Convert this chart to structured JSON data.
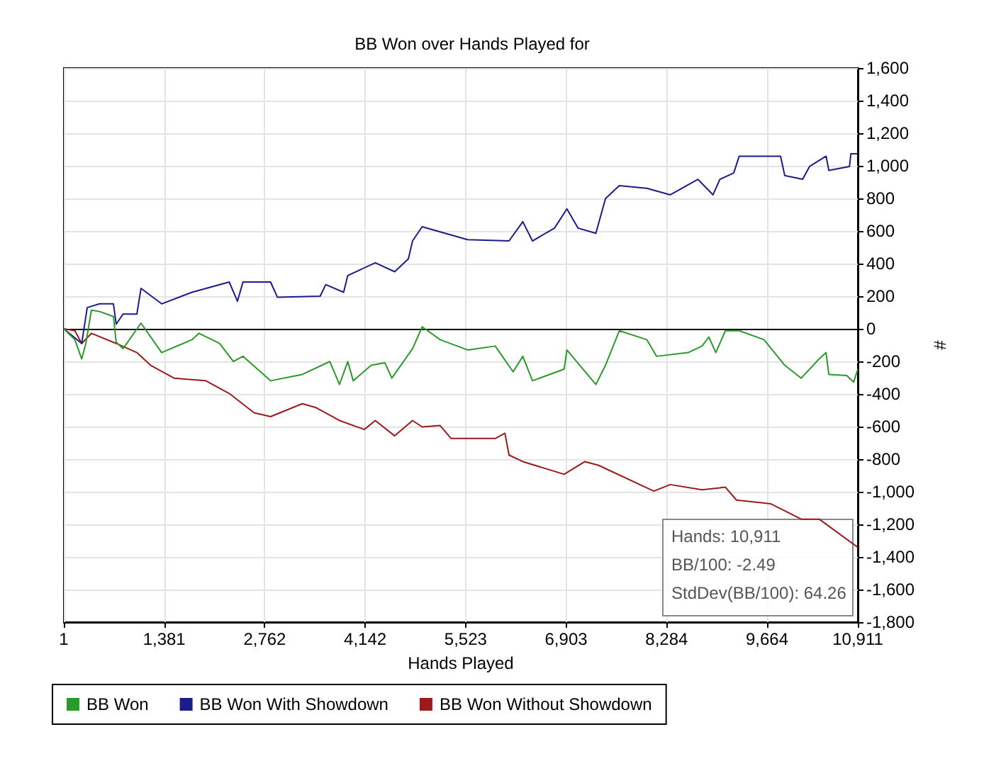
{
  "chart_data": {
    "type": "line",
    "title": "BB Won over Hands Played for",
    "xlabel": "Hands Played",
    "ylabel": "#",
    "xlim": [
      1,
      10911
    ],
    "xticks": [
      1,
      {
        "value": 1381,
        "label": "1,381"
      },
      {
        "value": 2762,
        "label": "2,762"
      },
      {
        "value": 4142,
        "label": "4,142"
      },
      {
        "value": 5523,
        "label": "5,523"
      },
      {
        "value": 6903,
        "label": "6,903"
      },
      {
        "value": 8284,
        "label": "8,284"
      },
      {
        "value": 9664,
        "label": "9,664"
      },
      {
        "value": 10911,
        "label": "10,911"
      }
    ],
    "ylim": [
      -1800,
      1600
    ],
    "yticks": [
      {
        "value": -1800,
        "label": "-1,800"
      },
      {
        "value": -1600,
        "label": "-1,600"
      },
      {
        "value": -1400,
        "label": "-1,400"
      },
      {
        "value": -1200,
        "label": "-1,200"
      },
      {
        "value": -1000,
        "label": "-1,000"
      },
      -800,
      -600,
      -400,
      -200,
      0,
      200,
      400,
      600,
      800,
      {
        "value": 1000,
        "label": "1,000"
      },
      {
        "value": 1200,
        "label": "1,200"
      },
      {
        "value": 1400,
        "label": "1,400"
      },
      {
        "value": 1600,
        "label": "1,600"
      }
    ],
    "grid": true,
    "legend": "bottom",
    "marker": "none",
    "ref_lines": [
      {
        "axis": "y",
        "value": 0,
        "color": "#000000"
      }
    ],
    "annotations": [
      "Hands: 10,911",
      "BB/100: -2.49",
      "StdDev(BB/100): 64.26"
    ],
    "series": [
      {
        "name": "BB Won",
        "color": "#2a9a2a",
        "x": [
          1,
          153,
          247,
          304,
          380,
          493,
          683,
          721,
          815,
          1062,
          1346,
          1762,
          1857,
          2141,
          2331,
          2463,
          2842,
          3278,
          3656,
          3789,
          3903,
          3978,
          4225,
          4414,
          4508,
          4793,
          4925,
          5172,
          5550,
          5929,
          6175,
          6308,
          6441,
          6876,
          6914,
          7312,
          7444,
          7634,
          8013,
          8145,
          8581,
          8770,
          8865,
          8960,
          9092,
          9282,
          9622,
          9907,
          10134,
          10380,
          10475,
          10513,
          10759,
          10854,
          10911
        ],
        "values": [
          0,
          -67,
          -185,
          -90,
          114,
          106,
          75,
          -83,
          -122,
          35,
          -146,
          -67,
          -28,
          -90,
          -201,
          -169,
          -319,
          -280,
          -201,
          -342,
          -201,
          -319,
          -224,
          -209,
          -303,
          -122,
          12,
          -67,
          -130,
          -106,
          -264,
          -169,
          -319,
          -248,
          -130,
          -342,
          -224,
          -12,
          -67,
          -169,
          -146,
          -106,
          -51,
          -146,
          -12,
          -12,
          -67,
          -224,
          -303,
          -185,
          -146,
          -280,
          -287,
          -327,
          -248
        ]
      },
      {
        "name": "BB Won With Showdown",
        "color": "#1c1c8c",
        "x": [
          1,
          247,
          323,
          493,
          683,
          721,
          815,
          1005,
          1062,
          1346,
          1762,
          2274,
          2387,
          2463,
          2842,
          2937,
          3524,
          3600,
          3846,
          3903,
          4281,
          4547,
          4736,
          4793,
          4925,
          5550,
          6119,
          6308,
          6441,
          6744,
          6914,
          7066,
          7312,
          7444,
          7634,
          8013,
          8335,
          8714,
          8922,
          9016,
          9206,
          9282,
          9850,
          9907,
          10153,
          10248,
          10475,
          10513,
          10797,
          10816,
          10911
        ],
        "values": [
          0,
          -90,
          130,
          153,
          153,
          28,
          90,
          90,
          248,
          153,
          224,
          287,
          169,
          287,
          287,
          193,
          200,
          271,
          224,
          327,
          405,
          350,
          429,
          539,
          626,
          547,
          539,
          657,
          539,
          618,
          736,
          618,
          586,
          799,
          878,
          862,
          822,
          917,
          822,
          917,
          956,
          1059,
          1059,
          940,
          917,
          996,
          1059,
          972,
          996,
          1074,
          1074
        ]
      },
      {
        "name": "BB Won Without Showdown",
        "color": "#9b1b1b",
        "x": [
          1,
          153,
          247,
          380,
          721,
          1005,
          1194,
          1516,
          1952,
          2274,
          2615,
          2842,
          3278,
          3467,
          3789,
          4130,
          4281,
          4547,
          4793,
          4925,
          5172,
          5323,
          5929,
          6062,
          6119,
          6308,
          6876,
          7161,
          7350,
          8108,
          8335,
          8770,
          9092,
          9244,
          9717,
          10134,
          10380,
          10911
        ],
        "values": [
          0,
          -12,
          -90,
          -28,
          -90,
          -146,
          -224,
          -303,
          -319,
          -397,
          -515,
          -539,
          -460,
          -484,
          -563,
          -618,
          -563,
          -657,
          -563,
          -602,
          -594,
          -673,
          -673,
          -641,
          -775,
          -815,
          -893,
          -815,
          -838,
          -996,
          -956,
          -988,
          -972,
          -1051,
          -1074,
          -1168,
          -1168,
          -1341
        ]
      }
    ]
  }
}
